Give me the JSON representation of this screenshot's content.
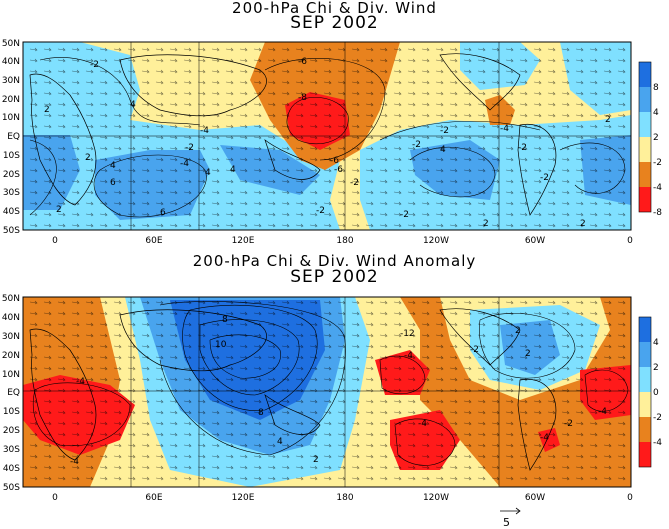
{
  "titles": {
    "top_line1": "200-hPa Chi & Div. Wind",
    "top_line2": "SEP 2002",
    "bottom_line1": "200-hPa Chi & Div. Wind Anomaly",
    "bottom_line2": "SEP 2002"
  },
  "axes": {
    "lat_labels": [
      "50N",
      "40N",
      "30N",
      "20N",
      "10N",
      "EQ",
      "10S",
      "20S",
      "30S",
      "40S",
      "50S"
    ],
    "lon_labels": [
      "0",
      "60E",
      "120E",
      "180",
      "120W",
      "60W",
      "0"
    ]
  },
  "colorbar_top": {
    "labels": [
      "8",
      "4",
      "2",
      "-2",
      "-4",
      "-8"
    ],
    "colors": [
      "#1e6fe0",
      "#49a4ee",
      "#7fe0ff",
      "#fff09a",
      "#e8821e",
      "#ff1a1a"
    ]
  },
  "colorbar_bottom": {
    "labels": [
      "4",
      "2",
      "0",
      "-2",
      "-4"
    ],
    "colors": [
      "#1e6fe0",
      "#49a4ee",
      "#7fe0ff",
      "#fff09a",
      "#e8821e",
      "#ff1a1a"
    ]
  },
  "vector_reference": {
    "label": "5"
  },
  "top_contour_labels": [
    "-6",
    "-8",
    "-4",
    "-2",
    "-4",
    "-2",
    "-2",
    "2",
    "4",
    "-2",
    "6",
    "4",
    "-6",
    "-6",
    "-4",
    "-2",
    "-2",
    "-2",
    "2",
    "2",
    "4",
    "-2",
    "2",
    "2",
    "-2",
    "4",
    "2",
    "6",
    "4"
  ],
  "bottom_contour_labels": [
    "-4",
    "-4",
    "8",
    "10",
    "8",
    "4",
    "2",
    "-12",
    "-4",
    "2",
    "-4",
    "-2",
    "-4",
    "2",
    "-2",
    "-4"
  ],
  "palette": {
    "blue_dark": "#1e6fe0",
    "blue_mid": "#49a4ee",
    "cyan": "#7fe0ff",
    "yellow": "#fff09a",
    "orange": "#e8821e",
    "red": "#ff1a1a"
  }
}
